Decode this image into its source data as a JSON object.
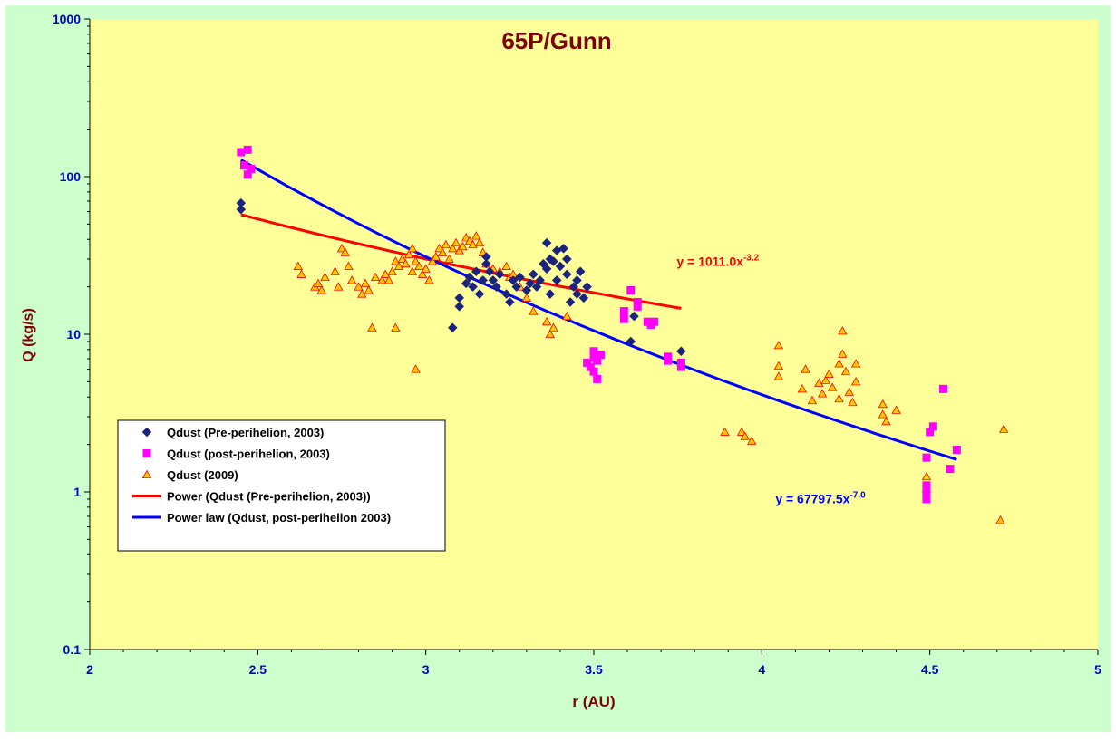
{
  "chart_data": {
    "type": "scatter",
    "title": "65P/Gunn",
    "xlabel": "r (AU)",
    "ylabel": "Q (kg/s)",
    "xlim": [
      2,
      5
    ],
    "ylim": [
      0.1,
      1000
    ],
    "yscale": "log",
    "x_ticks": [
      "2",
      "2.5",
      "3",
      "3.5",
      "4",
      "4.5",
      "5"
    ],
    "y_ticks": [
      "0.1",
      "1",
      "10",
      "100",
      "1000"
    ],
    "grid": false,
    "legend_position": "lower-left",
    "colors": {
      "outer_background": "#ccffcc",
      "plot_background": "#ffff99",
      "title": "#800000",
      "axis_label": "#800000",
      "tick_label": "#0000cc",
      "pre": "#1a237e",
      "post": "#ff00ff",
      "y2009_fill": "#ffcc00",
      "y2009_edge": "#ff0000",
      "fit_red": "#ff0000",
      "fit_blue": "#0000ff"
    },
    "series": [
      {
        "name": "Qdust (Pre-perihelion, 2003)",
        "marker": "diamond",
        "points": [
          [
            2.45,
            68
          ],
          [
            2.45,
            62
          ],
          [
            3.08,
            11
          ],
          [
            3.1,
            15
          ],
          [
            3.1,
            17
          ],
          [
            3.12,
            21
          ],
          [
            3.13,
            23
          ],
          [
            3.14,
            20
          ],
          [
            3.15,
            25
          ],
          [
            3.16,
            18
          ],
          [
            3.17,
            22
          ],
          [
            3.18,
            28
          ],
          [
            3.18,
            31
          ],
          [
            3.19,
            25
          ],
          [
            3.2,
            22
          ],
          [
            3.21,
            20
          ],
          [
            3.22,
            24
          ],
          [
            3.24,
            18
          ],
          [
            3.25,
            16
          ],
          [
            3.26,
            22
          ],
          [
            3.27,
            20
          ],
          [
            3.28,
            23
          ],
          [
            3.3,
            19
          ],
          [
            3.31,
            21
          ],
          [
            3.32,
            24
          ],
          [
            3.33,
            20
          ],
          [
            3.34,
            22
          ],
          [
            3.35,
            28
          ],
          [
            3.36,
            38
          ],
          [
            3.36,
            26
          ],
          [
            3.37,
            30
          ],
          [
            3.37,
            18
          ],
          [
            3.38,
            29
          ],
          [
            3.39,
            34
          ],
          [
            3.39,
            22
          ],
          [
            3.4,
            27
          ],
          [
            3.41,
            35
          ],
          [
            3.42,
            24
          ],
          [
            3.42,
            30
          ],
          [
            3.43,
            16
          ],
          [
            3.44,
            20
          ],
          [
            3.45,
            18
          ],
          [
            3.45,
            22
          ],
          [
            3.46,
            25
          ],
          [
            3.47,
            17
          ],
          [
            3.48,
            20
          ],
          [
            3.61,
            9
          ],
          [
            3.62,
            13
          ],
          [
            3.76,
            7.8
          ]
        ]
      },
      {
        "name": "Qdust (post-perihelion, 2003)",
        "marker": "square",
        "points": [
          [
            2.45,
            143
          ],
          [
            2.46,
            118
          ],
          [
            2.47,
            103
          ],
          [
            2.47,
            148
          ],
          [
            2.48,
            112
          ],
          [
            3.48,
            6.6
          ],
          [
            3.49,
            6.2
          ],
          [
            3.5,
            7.1
          ],
          [
            3.5,
            7.8
          ],
          [
            3.5,
            5.8
          ],
          [
            3.51,
            6.8
          ],
          [
            3.51,
            5.2
          ],
          [
            3.52,
            7.4
          ],
          [
            3.59,
            14
          ],
          [
            3.59,
            12.5
          ],
          [
            3.61,
            19
          ],
          [
            3.63,
            16
          ],
          [
            3.63,
            15
          ],
          [
            3.66,
            12
          ],
          [
            3.67,
            11.5
          ],
          [
            3.68,
            12
          ],
          [
            3.72,
            7.2
          ],
          [
            3.72,
            6.8
          ],
          [
            3.76,
            6.2
          ],
          [
            3.76,
            6.6
          ],
          [
            4.49,
            1.65
          ],
          [
            4.49,
            1.1
          ],
          [
            4.49,
            1.0
          ],
          [
            4.49,
            0.9
          ],
          [
            4.5,
            2.4
          ],
          [
            4.51,
            2.6
          ],
          [
            4.54,
            4.5
          ],
          [
            4.56,
            1.4
          ],
          [
            4.58,
            1.85
          ]
        ]
      },
      {
        "name": "Qdust (2009)",
        "marker": "triangle",
        "points": [
          [
            2.62,
            27
          ],
          [
            2.63,
            24
          ],
          [
            2.67,
            20
          ],
          [
            2.68,
            21
          ],
          [
            2.69,
            19
          ],
          [
            2.7,
            23
          ],
          [
            2.73,
            25
          ],
          [
            2.74,
            20
          ],
          [
            2.75,
            35
          ],
          [
            2.76,
            33
          ],
          [
            2.77,
            27
          ],
          [
            2.78,
            22
          ],
          [
            2.8,
            20
          ],
          [
            2.81,
            18
          ],
          [
            2.82,
            21
          ],
          [
            2.83,
            19
          ],
          [
            2.84,
            11
          ],
          [
            2.85,
            23
          ],
          [
            2.87,
            22
          ],
          [
            2.88,
            24
          ],
          [
            2.89,
            22
          ],
          [
            2.9,
            25
          ],
          [
            2.91,
            29
          ],
          [
            2.92,
            27
          ],
          [
            2.93,
            30
          ],
          [
            2.94,
            28
          ],
          [
            2.95,
            32
          ],
          [
            2.96,
            35
          ],
          [
            2.96,
            25
          ],
          [
            2.97,
            29
          ],
          [
            2.97,
            6
          ],
          [
            2.98,
            27
          ],
          [
            2.99,
            24
          ],
          [
            3.0,
            26
          ],
          [
            3.01,
            22
          ],
          [
            3.02,
            29
          ],
          [
            3.03,
            31
          ],
          [
            3.04,
            35
          ],
          [
            3.05,
            33
          ],
          [
            3.06,
            37
          ],
          [
            3.07,
            30
          ],
          [
            3.08,
            35
          ],
          [
            3.09,
            38
          ],
          [
            3.1,
            34
          ],
          [
            3.11,
            36
          ],
          [
            3.12,
            41
          ],
          [
            3.13,
            39
          ],
          [
            3.14,
            37
          ],
          [
            3.15,
            42
          ],
          [
            3.16,
            38
          ],
          [
            3.17,
            33
          ],
          [
            3.18,
            28
          ],
          [
            3.2,
            26
          ],
          [
            3.22,
            25
          ],
          [
            3.24,
            27
          ],
          [
            3.25,
            23
          ],
          [
            3.26,
            24
          ],
          [
            3.28,
            20
          ],
          [
            3.3,
            17
          ],
          [
            3.32,
            14
          ],
          [
            3.36,
            12
          ],
          [
            3.37,
            10
          ],
          [
            3.38,
            11
          ],
          [
            3.42,
            13
          ],
          [
            2.91,
            11
          ],
          [
            4.05,
            8.5
          ],
          [
            4.05,
            6.3
          ],
          [
            4.05,
            5.4
          ],
          [
            4.12,
            4.5
          ],
          [
            4.13,
            6
          ],
          [
            4.15,
            3.8
          ],
          [
            4.17,
            4.9
          ],
          [
            4.18,
            4.2
          ],
          [
            4.19,
            5.1
          ],
          [
            4.2,
            5.6
          ],
          [
            4.21,
            4.6
          ],
          [
            4.23,
            3.9
          ],
          [
            4.23,
            6.5
          ],
          [
            4.24,
            7.5
          ],
          [
            4.24,
            10.5
          ],
          [
            4.25,
            5.8
          ],
          [
            4.26,
            4.3
          ],
          [
            4.27,
            3.7
          ],
          [
            4.28,
            5
          ],
          [
            4.28,
            6.5
          ],
          [
            4.36,
            3.6
          ],
          [
            4.36,
            3.1
          ],
          [
            4.37,
            2.8
          ],
          [
            4.4,
            3.3
          ],
          [
            3.89,
            2.4
          ],
          [
            3.94,
            2.4
          ],
          [
            3.95,
            2.25
          ],
          [
            3.97,
            2.1
          ],
          [
            4.71,
            0.66
          ],
          [
            4.72,
            2.5
          ],
          [
            4.49,
            1.05
          ],
          [
            4.49,
            1.25
          ]
        ]
      },
      {
        "name": "Power (Qdust (Pre-perihelion, 2003))",
        "type": "line",
        "fit": {
          "coefficient": 1011.0,
          "exponent": -3.2
        },
        "x_range": [
          2.45,
          3.76
        ]
      },
      {
        "name": "Power law (Qdust, post-perihelion 2003)",
        "type": "line",
        "fit": {
          "coefficient": 67797.5,
          "exponent": -7.0
        },
        "x_range": [
          2.45,
          4.58
        ]
      }
    ],
    "annotations": [
      {
        "base": "y = 1011.0x",
        "exp": "-3.2",
        "series": "Power (Qdust (Pre-perihelion, 2003))"
      },
      {
        "base": "y = 67797.5x",
        "exp": "-7.0",
        "series": "Power law (Qdust, post-perihelion 2003)"
      }
    ]
  }
}
